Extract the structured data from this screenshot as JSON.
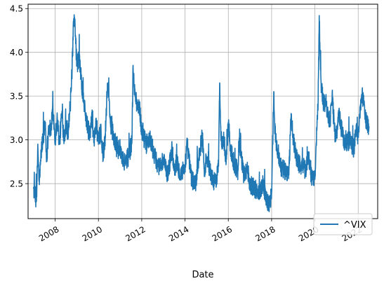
{
  "chart_data": {
    "type": "line",
    "title": "",
    "xlabel": "Date",
    "ylabel": "",
    "xlim": [
      2006.75,
      2022.9
    ],
    "ylim": [
      2.1,
      4.55
    ],
    "yticks": [
      2.5,
      3.0,
      3.5,
      4.0,
      4.5
    ],
    "yticklabels": [
      "2.5",
      "3.0",
      "3.5",
      "4.0",
      "4.5"
    ],
    "xticks": [
      2008,
      2010,
      2012,
      2014,
      2016,
      2018,
      2020,
      2022
    ],
    "xticklabels": [
      "2008",
      "2010",
      "2012",
      "2014",
      "2016",
      "2018",
      "2020",
      "2022"
    ],
    "grid": true,
    "legend": {
      "position": "lower-right"
    },
    "series": [
      {
        "name": "^VIX",
        "color": "#1f77b4",
        "x": [
          2007.0,
          2007.1,
          2007.15,
          2007.2,
          2007.25,
          2007.3,
          2007.35,
          2007.45,
          2007.55,
          2007.6,
          2007.7,
          2007.8,
          2007.9,
          2008.0,
          2008.1,
          2008.2,
          2008.3,
          2008.4,
          2008.5,
          2008.6,
          2008.7,
          2008.75,
          2008.8,
          2008.85,
          2008.9,
          2008.95,
          2009.0,
          2009.1,
          2009.2,
          2009.3,
          2009.4,
          2009.5,
          2009.6,
          2009.7,
          2009.8,
          2009.9,
          2010.0,
          2010.1,
          2010.2,
          2010.3,
          2010.4,
          2010.45,
          2010.55,
          2010.7,
          2010.9,
          2011.0,
          2011.2,
          2011.4,
          2011.55,
          2011.6,
          2011.65,
          2011.7,
          2011.8,
          2011.9,
          2012.0,
          2012.2,
          2012.4,
          2012.6,
          2012.8,
          2013.0,
          2013.2,
          2013.4,
          2013.5,
          2013.6,
          2013.8,
          2014.0,
          2014.1,
          2014.3,
          2014.5,
          2014.6,
          2014.8,
          2014.9,
          2015.0,
          2015.2,
          2015.4,
          2015.55,
          2015.6,
          2015.65,
          2015.7,
          2015.8,
          2015.9,
          2016.0,
          2016.1,
          2016.3,
          2016.45,
          2016.5,
          2016.7,
          2016.9,
          2017.0,
          2017.2,
          2017.4,
          2017.6,
          2017.8,
          2017.9,
          2018.0,
          2018.1,
          2018.15,
          2018.25,
          2018.4,
          2018.6,
          2018.8,
          2018.9,
          2019.0,
          2019.2,
          2019.4,
          2019.6,
          2019.7,
          2019.8,
          2020.0,
          2020.1,
          2020.15,
          2020.2,
          2020.25,
          2020.3,
          2020.4,
          2020.5,
          2020.6,
          2020.7,
          2020.8,
          2020.9,
          2021.0,
          2021.1,
          2021.2,
          2021.4,
          2021.6,
          2021.8,
          2021.9,
          2022.0,
          2022.1,
          2022.2,
          2022.3,
          2022.4,
          2022.5
        ],
        "values": [
          2.45,
          2.32,
          2.35,
          2.95,
          2.55,
          2.6,
          2.85,
          3.05,
          3.2,
          2.75,
          3.15,
          3.1,
          3.35,
          3.0,
          3.25,
          2.95,
          3.3,
          3.05,
          3.15,
          3.1,
          3.4,
          3.6,
          3.95,
          4.3,
          4.38,
          4.1,
          3.85,
          3.95,
          3.7,
          3.45,
          3.3,
          3.15,
          3.05,
          3.25,
          3.0,
          3.2,
          2.95,
          3.1,
          2.85,
          2.95,
          3.55,
          3.6,
          3.2,
          3.05,
          2.85,
          2.9,
          2.75,
          2.8,
          3.0,
          3.85,
          3.6,
          3.5,
          3.4,
          3.35,
          3.1,
          2.95,
          3.0,
          2.8,
          2.7,
          2.75,
          2.6,
          2.9,
          2.65,
          2.75,
          2.6,
          2.7,
          2.95,
          2.55,
          2.5,
          2.75,
          3.05,
          2.65,
          2.8,
          2.6,
          2.5,
          2.7,
          3.65,
          3.15,
          2.95,
          3.0,
          2.75,
          3.2,
          2.9,
          2.7,
          2.65,
          3.0,
          2.6,
          2.65,
          2.5,
          2.45,
          2.4,
          2.5,
          2.3,
          2.25,
          2.4,
          3.55,
          3.1,
          2.9,
          2.7,
          2.65,
          2.6,
          3.3,
          3.0,
          2.75,
          2.7,
          2.65,
          2.85,
          2.6,
          2.55,
          3.2,
          3.45,
          4.42,
          3.9,
          3.6,
          3.4,
          3.45,
          3.3,
          3.2,
          3.55,
          3.1,
          3.05,
          3.3,
          3.15,
          2.95,
          3.0,
          2.9,
          3.1,
          3.05,
          3.4,
          3.5,
          3.3,
          3.2,
          3.15
        ]
      }
    ]
  }
}
